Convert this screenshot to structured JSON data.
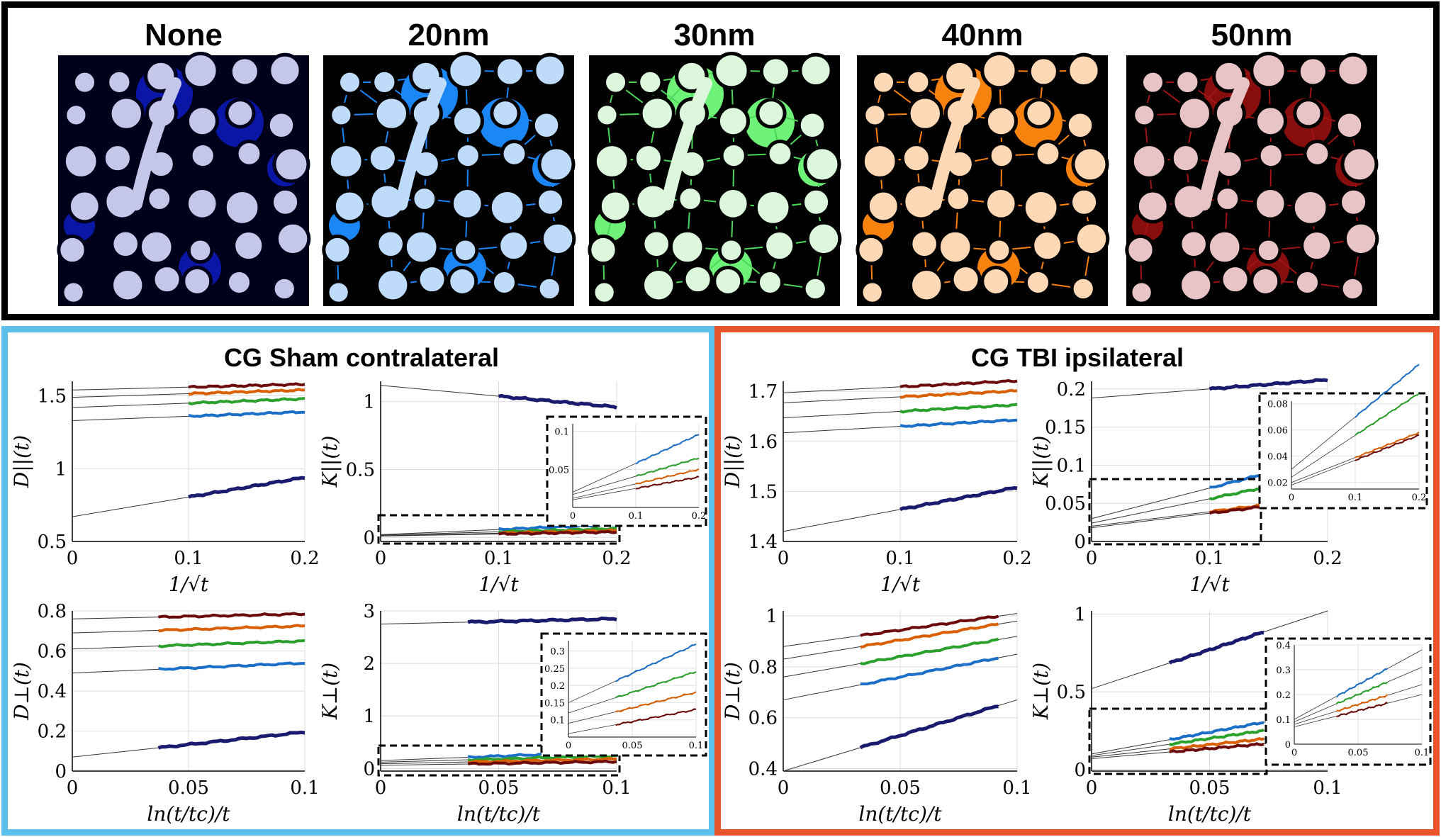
{
  "segmentation": {
    "labels": [
      "None",
      "20nm",
      "30nm",
      "40nm",
      "50nm"
    ],
    "colors": [
      {
        "bg": "#00001a",
        "axon": "#c4c6ea",
        "ecs": "#0a17a6",
        "line": "#0a17a6"
      },
      {
        "bg": "#000000",
        "axon": "#bedcfa",
        "ecs": "#1b86f5",
        "line": "#1b86f5"
      },
      {
        "bg": "#000000",
        "axon": "#dcf7db",
        "ecs": "#6ef277",
        "line": "#4dd65a"
      },
      {
        "bg": "#000000",
        "axon": "#ffd8b5",
        "ecs": "#f8820e",
        "line": "#f8820e"
      },
      {
        "bg": "#000000",
        "axon": "#e8c4c6",
        "ecs": "#880e0e",
        "line": "#a01414"
      }
    ]
  },
  "series_names": [
    "None",
    "20nm",
    "30nm",
    "40nm",
    "50nm"
  ],
  "series_colors": [
    "#1a1a6e",
    "#1c6fc7",
    "#2ca02c",
    "#d95f02",
    "#6b0b0b"
  ],
  "groups": {
    "sham": {
      "title": "CG Sham contralateral",
      "border_color": "#5bc0eb"
    },
    "tbi": {
      "title": "CG   TBI ipsilateral",
      "border_color": "#e8542b"
    }
  },
  "chart_data": [
    {
      "id": "sham_Dpar",
      "type": "line",
      "group": "sham",
      "title": "",
      "ylabel": "D||(t)",
      "xlabel": "1/√t",
      "xlim": [
        0,
        0.2
      ],
      "ylim": [
        0.5,
        1.6
      ],
      "xticks": [
        0,
        0.1,
        0.2
      ],
      "xtick_labels": [
        "0",
        "0.1",
        "0.2"
      ],
      "yticks": [
        0.5,
        1,
        1.5
      ],
      "ytick_labels": [
        "0.5",
        "1",
        "1.5"
      ],
      "data_x": [
        0.1,
        0.2
      ],
      "series": [
        {
          "name": "None",
          "intercept": 0.67,
          "slope": 1.35
        },
        {
          "name": "20nm",
          "intercept": 1.33,
          "slope": 0.3
        },
        {
          "name": "30nm",
          "intercept": 1.42,
          "slope": 0.3
        },
        {
          "name": "40nm",
          "intercept": 1.49,
          "slope": 0.25
        },
        {
          "name": "50nm",
          "intercept": 1.54,
          "slope": 0.2
        }
      ],
      "inset": null
    },
    {
      "id": "sham_Kpar",
      "type": "line",
      "group": "sham",
      "title": "",
      "ylabel": "K||(t)",
      "xlabel": "1/√t",
      "xlim": [
        0,
        0.2
      ],
      "ylim": [
        -0.03,
        1.15
      ],
      "xticks": [
        0,
        0.1,
        0.2
      ],
      "xtick_labels": [
        "0",
        "0.1",
        "0.2"
      ],
      "yticks": [
        0,
        0.5,
        1
      ],
      "ytick_labels": [
        "0",
        "0.5",
        "1"
      ],
      "data_x": [
        0.1,
        0.2
      ],
      "series": [
        {
          "name": "None",
          "intercept": 1.12,
          "slope": -0.8
        },
        {
          "name": "20nm",
          "intercept": 0.02,
          "slope": 0.38
        },
        {
          "name": "30nm",
          "intercept": 0.017,
          "slope": 0.24
        },
        {
          "name": "40nm",
          "intercept": 0.012,
          "slope": 0.19
        },
        {
          "name": "50nm",
          "intercept": 0.01,
          "slope": 0.15
        }
      ],
      "inset": {
        "xlim": [
          0,
          0.2
        ],
        "ylim": [
          0,
          0.11
        ],
        "xticks": [
          0,
          0.1,
          0.2
        ],
        "xtick_labels": [
          "0",
          "0.1",
          "0.2"
        ],
        "yticks": [
          0.05,
          0.1
        ],
        "ytick_labels": [
          "0.05",
          "0.1"
        ],
        "series": [
          "20nm",
          "30nm",
          "40nm",
          "50nm"
        ]
      }
    },
    {
      "id": "sham_Dperp",
      "type": "line",
      "group": "sham",
      "title": "",
      "ylabel": "D⊥(t)",
      "xlabel": "ln(t/tc)/t",
      "xlim": [
        0,
        0.1
      ],
      "ylim": [
        0,
        0.8
      ],
      "xticks": [
        0,
        0.05,
        0.1
      ],
      "xtick_labels": [
        "0",
        "0.05",
        "0.1"
      ],
      "yticks": [
        0,
        0.2,
        0.4,
        0.6,
        0.8
      ],
      "ytick_labels": [
        "0",
        "0.2",
        "0.4",
        "0.6",
        "0.8"
      ],
      "data_x": [
        0.037,
        0.1
      ],
      "series": [
        {
          "name": "None",
          "intercept": 0.07,
          "slope": 1.25
        },
        {
          "name": "20nm",
          "intercept": 0.49,
          "slope": 0.5
        },
        {
          "name": "30nm",
          "intercept": 0.61,
          "slope": 0.4
        },
        {
          "name": "40nm",
          "intercept": 0.69,
          "slope": 0.35
        },
        {
          "name": "50nm",
          "intercept": 0.76,
          "slope": 0.25
        }
      ],
      "inset": null
    },
    {
      "id": "sham_Kperp",
      "type": "line",
      "group": "sham",
      "title": "",
      "ylabel": "K⊥(t)",
      "xlabel": "ln(t/tc)/t",
      "xlim": [
        0,
        0.1
      ],
      "ylim": [
        -0.05,
        3
      ],
      "xticks": [
        0,
        0.05,
        0.1
      ],
      "xtick_labels": [
        "0",
        "0.05",
        "0.1"
      ],
      "yticks": [
        0,
        1,
        2,
        3
      ],
      "ytick_labels": [
        "0",
        "1",
        "2",
        "3"
      ],
      "data_x": [
        0.037,
        0.1
      ],
      "series": [
        {
          "name": "None",
          "intercept": 2.75,
          "slope": 1.0
        },
        {
          "name": "20nm",
          "intercept": 0.15,
          "slope": 1.7
        },
        {
          "name": "30nm",
          "intercept": 0.12,
          "slope": 1.2
        },
        {
          "name": "40nm",
          "intercept": 0.09,
          "slope": 0.9
        },
        {
          "name": "50nm",
          "intercept": 0.06,
          "slope": 0.7
        }
      ],
      "inset": {
        "xlim": [
          0,
          0.1
        ],
        "ylim": [
          0.05,
          0.33
        ],
        "xticks": [
          0,
          0.05,
          0.1
        ],
        "xtick_labels": [
          "0",
          "0.05",
          "0.1"
        ],
        "yticks": [
          0.1,
          0.15,
          0.2,
          0.25,
          0.3
        ],
        "ytick_labels": [
          "0.1",
          "0.15",
          "0.2",
          "0.25",
          "0.3"
        ],
        "series": [
          "20nm",
          "30nm",
          "40nm",
          "50nm"
        ]
      }
    },
    {
      "id": "tbi_Dpar",
      "type": "line",
      "group": "tbi",
      "title": "",
      "ylabel": "D||(t)",
      "xlabel": "1/√t",
      "xlim": [
        0,
        0.2
      ],
      "ylim": [
        1.4,
        1.72
      ],
      "xticks": [
        0,
        0.1,
        0.2
      ],
      "xtick_labels": [
        "0",
        "0.1",
        "0.2"
      ],
      "yticks": [
        1.4,
        1.5,
        1.6,
        1.7
      ],
      "ytick_labels": [
        "1.4",
        "1.5",
        "1.6",
        "1.7"
      ],
      "data_x": [
        0.1,
        0.2
      ],
      "series": [
        {
          "name": "None",
          "intercept": 1.42,
          "slope": 0.44
        },
        {
          "name": "20nm",
          "intercept": 1.617,
          "slope": 0.13
        },
        {
          "name": "30nm",
          "intercept": 1.647,
          "slope": 0.13
        },
        {
          "name": "40nm",
          "intercept": 1.677,
          "slope": 0.12
        },
        {
          "name": "50nm",
          "intercept": 1.697,
          "slope": 0.12
        }
      ],
      "inset": null
    },
    {
      "id": "tbi_Kpar",
      "type": "line",
      "group": "tbi",
      "title": "",
      "ylabel": "K||(t)",
      "xlabel": "1/√t",
      "xlim": [
        0,
        0.2
      ],
      "ylim": [
        0,
        0.21
      ],
      "xticks": [
        0,
        0.1,
        0.2
      ],
      "xtick_labels": [
        "0",
        "0.1",
        "0.2"
      ],
      "yticks": [
        0,
        0.05,
        0.1,
        0.15,
        0.2
      ],
      "ytick_labels": [
        "0",
        "0.05",
        "0.1",
        "0.15",
        "0.2"
      ],
      "data_x": [
        0.1,
        0.2
      ],
      "series": [
        {
          "name": "None",
          "intercept": 0.188,
          "slope": 0.12
        },
        {
          "name": "20nm",
          "intercept": 0.03,
          "slope": 0.4
        },
        {
          "name": "30nm",
          "intercept": 0.024,
          "slope": 0.32
        },
        {
          "name": "40nm",
          "intercept": 0.02,
          "slope": 0.19
        },
        {
          "name": "50nm",
          "intercept": 0.018,
          "slope": 0.19
        }
      ],
      "inset": {
        "xlim": [
          0,
          0.2
        ],
        "ylim": [
          0.015,
          0.082
        ],
        "xticks": [
          0,
          0.1,
          0.2
        ],
        "xtick_labels": [
          "0",
          "0.1",
          "0.2"
        ],
        "yticks": [
          0.02,
          0.04,
          0.06,
          0.08
        ],
        "ytick_labels": [
          "0.02",
          "0.04",
          "0.06",
          "0.08"
        ],
        "series": [
          "20nm",
          "30nm",
          "40nm",
          "50nm"
        ]
      }
    },
    {
      "id": "tbi_Dperp",
      "type": "line",
      "group": "tbi",
      "title": "",
      "ylabel": "D⊥(t)",
      "xlabel": "ln(t/tc)/t",
      "xlim": [
        0,
        0.1
      ],
      "ylim": [
        0.39,
        1.02
      ],
      "xticks": [
        0,
        0.05,
        0.1
      ],
      "xtick_labels": [
        "0",
        "0.05",
        "0.1"
      ],
      "yticks": [
        0.4,
        0.6,
        0.8,
        1
      ],
      "ytick_labels": [
        "0.4",
        "0.6",
        "0.8",
        "1"
      ],
      "data_x": [
        0.033,
        0.092
      ],
      "series": [
        {
          "name": "None",
          "intercept": 0.39,
          "slope": 2.8
        },
        {
          "name": "20nm",
          "intercept": 0.67,
          "slope": 1.8
        },
        {
          "name": "30nm",
          "intercept": 0.76,
          "slope": 1.6
        },
        {
          "name": "40nm",
          "intercept": 0.83,
          "slope": 1.5
        },
        {
          "name": "50nm",
          "intercept": 0.88,
          "slope": 1.3
        }
      ],
      "inset": null
    },
    {
      "id": "tbi_Kperp",
      "type": "line",
      "group": "tbi",
      "title": "",
      "ylabel": "K⊥(t)",
      "xlabel": "ln(t/tc)/t",
      "xlim": [
        0,
        0.1
      ],
      "ylim": [
        -0.01,
        1.02
      ],
      "xticks": [
        0,
        0.05,
        0.1
      ],
      "xtick_labels": [
        "0",
        "0.05",
        "0.1"
      ],
      "yticks": [
        0,
        0.5,
        1
      ],
      "ytick_labels": [
        "0",
        "0.5",
        "1"
      ],
      "data_x": [
        0.033,
        0.073
      ],
      "series": [
        {
          "name": "None",
          "intercept": 0.52,
          "slope": 5.0
        },
        {
          "name": "20nm",
          "intercept": 0.1,
          "slope": 2.8
        },
        {
          "name": "30nm",
          "intercept": 0.09,
          "slope": 2.2
        },
        {
          "name": "40nm",
          "intercept": 0.08,
          "slope": 1.6
        },
        {
          "name": "50nm",
          "intercept": 0.07,
          "slope": 1.3
        }
      ],
      "inset": {
        "xlim": [
          0,
          0.1
        ],
        "ylim": [
          0,
          0.4
        ],
        "xticks": [
          0,
          0.05,
          0.1
        ],
        "xtick_labels": [
          "0",
          "0.05",
          "0.1"
        ],
        "yticks": [
          0,
          0.1,
          0.2,
          0.3,
          0.4
        ],
        "ytick_labels": [
          "0",
          "0.1",
          "0.2",
          "0.3",
          "0.4"
        ],
        "series": [
          "20nm",
          "30nm",
          "40nm",
          "50nm"
        ]
      }
    }
  ]
}
